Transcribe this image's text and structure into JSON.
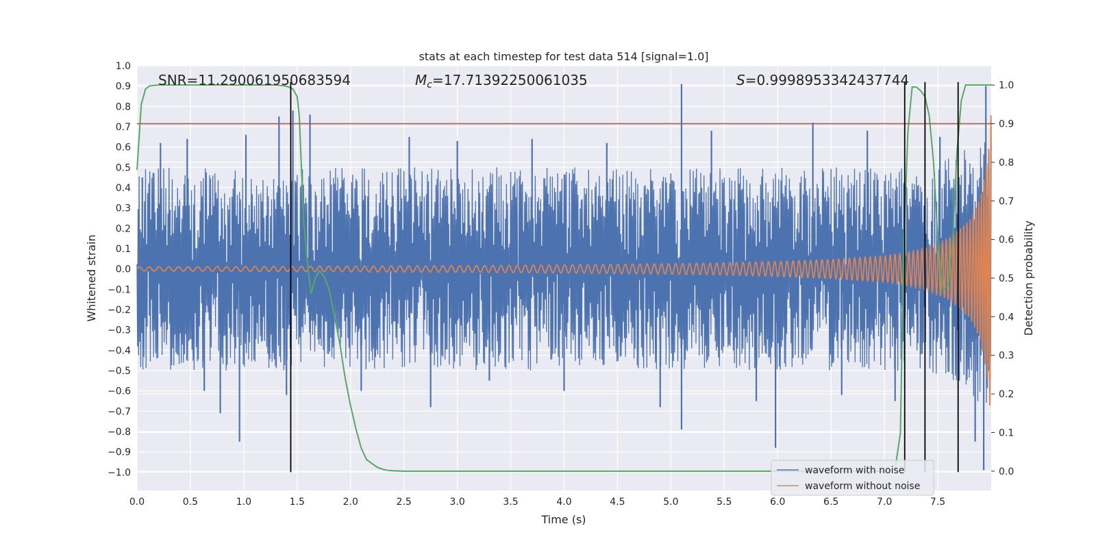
{
  "chart_data": {
    "type": "line",
    "title": "stats at each timestep for test data 514 [signal=1.0]",
    "xlabel": "Time (s)",
    "ylabel": "Whitened strain",
    "ylabel_right": "Detection probability",
    "xlim": [
      0.0,
      8.0
    ],
    "ylim": [
      -1.09,
      1.0
    ],
    "ylim_right": [
      -0.05,
      1.05
    ],
    "x_ticks": [
      "0.0",
      "0.5",
      "1.0",
      "1.5",
      "2.0",
      "2.5",
      "3.0",
      "3.5",
      "4.0",
      "4.5",
      "5.0",
      "5.5",
      "6.0",
      "6.5",
      "7.0",
      "7.5"
    ],
    "x_tick_values": [
      0.0,
      0.5,
      1.0,
      1.5,
      2.0,
      2.5,
      3.0,
      3.5,
      4.0,
      4.5,
      5.0,
      5.5,
      6.0,
      6.5,
      7.0,
      7.5
    ],
    "y_ticks": [
      "1.0",
      "0.9",
      "0.8",
      "0.7",
      "0.6",
      "0.5",
      "0.4",
      "0.3",
      "0.2",
      "0.1",
      "0.0",
      "−0.1",
      "−0.2",
      "−0.3",
      "−0.4",
      "−0.5",
      "−0.6",
      "−0.7",
      "−0.8",
      "−0.9",
      "−1.0"
    ],
    "y_tick_values": [
      1.0,
      0.9,
      0.8,
      0.7,
      0.6,
      0.5,
      0.4,
      0.3,
      0.2,
      0.1,
      0.0,
      -0.1,
      -0.2,
      -0.3,
      -0.4,
      -0.5,
      -0.6,
      -0.7,
      -0.8,
      -0.9,
      -1.0
    ],
    "y_right_ticks": [
      "1.0",
      "0.9",
      "0.8",
      "0.7",
      "0.6",
      "0.5",
      "0.4",
      "0.3",
      "0.2",
      "0.1",
      "0.0"
    ],
    "y_right_tick_values": [
      1.0,
      0.9,
      0.8,
      0.7,
      0.6,
      0.5,
      0.4,
      0.3,
      0.2,
      0.1,
      0.0
    ],
    "grid": true,
    "annotations": {
      "snr": "SNR=11.290061950683594",
      "mc_symbol": "M",
      "mc_sub": "c",
      "mc_value": "=17.71392250061035",
      "s_symbol": "S",
      "s_value": "=0.9998953342437744"
    },
    "threshold_right": 0.9,
    "vlines_x": [
      1.44,
      7.19,
      7.38,
      7.69
    ],
    "vline_ylim": [
      -1.0,
      0.92
    ],
    "series": [
      {
        "name": "waveform with noise",
        "color": "#4c72b0",
        "envelope_x": [
          0.0,
          0.5,
          1.0,
          1.5,
          2.0,
          2.5,
          3.0,
          3.5,
          4.0,
          4.5,
          5.0,
          5.5,
          6.0,
          6.5,
          7.0,
          7.5,
          7.8,
          7.95,
          8.0
        ],
        "envelope_upper": [
          0.5,
          0.5,
          0.5,
          0.5,
          0.5,
          0.5,
          0.5,
          0.5,
          0.5,
          0.5,
          0.5,
          0.5,
          0.5,
          0.5,
          0.5,
          0.52,
          0.62,
          0.7,
          0.75
        ],
        "envelope_lower": [
          -0.5,
          -0.5,
          -0.5,
          -0.5,
          -0.5,
          -0.5,
          -0.5,
          -0.5,
          -0.5,
          -0.5,
          -0.5,
          -0.5,
          -0.5,
          -0.5,
          -0.5,
          -0.52,
          -0.62,
          -0.7,
          -0.75
        ],
        "spikes": [
          [
            0.05,
            0.45
          ],
          [
            0.22,
            0.62
          ],
          [
            0.47,
            0.64
          ],
          [
            0.63,
            -0.6
          ],
          [
            0.78,
            -0.71
          ],
          [
            0.96,
            -0.85
          ],
          [
            1.02,
            0.66
          ],
          [
            1.33,
            0.75
          ],
          [
            1.4,
            -0.62
          ],
          [
            1.46,
            0.78
          ],
          [
            1.62,
            0.76
          ],
          [
            2.1,
            -0.6
          ],
          [
            2.55,
            0.65
          ],
          [
            2.75,
            -0.68
          ],
          [
            3.0,
            0.63
          ],
          [
            3.3,
            -0.55
          ],
          [
            3.7,
            0.64
          ],
          [
            4.0,
            -0.6
          ],
          [
            4.4,
            0.62
          ],
          [
            4.9,
            -0.68
          ],
          [
            5.1,
            0.91
          ],
          [
            5.1,
            -0.79
          ],
          [
            5.38,
            0.68
          ],
          [
            5.8,
            -0.65
          ],
          [
            5.98,
            -0.88
          ],
          [
            6.33,
            0.72
          ],
          [
            6.6,
            -0.62
          ],
          [
            6.84,
            0.68
          ],
          [
            7.1,
            -0.65
          ],
          [
            7.52,
            0.65
          ],
          [
            7.7,
            -0.55
          ],
          [
            7.85,
            -0.85
          ],
          [
            7.95,
            0.9
          ],
          [
            7.93,
            -0.99
          ]
        ]
      },
      {
        "name": "waveform without noise",
        "color": "#dd8452",
        "amplitude_x": [
          0.0,
          1.0,
          2.0,
          3.0,
          4.0,
          5.0,
          5.5,
          6.0,
          6.5,
          7.0,
          7.2,
          7.4,
          7.6,
          7.8,
          7.9,
          7.97,
          8.0
        ],
        "amplitude_y": [
          0.01,
          0.012,
          0.014,
          0.016,
          0.02,
          0.026,
          0.03,
          0.037,
          0.047,
          0.065,
          0.08,
          0.105,
          0.15,
          0.24,
          0.35,
          0.55,
          0.78
        ],
        "freq_hz_x": [
          0.0,
          1.0,
          2.0,
          3.0,
          4.0,
          5.0,
          6.0,
          7.0,
          7.5,
          7.8,
          8.0
        ],
        "freq_hz_y": [
          10.8,
          11.3,
          11.9,
          12.7,
          13.7,
          15.1,
          17.2,
          21.5,
          26.5,
          34.0,
          48.0
        ]
      },
      {
        "name": "",
        "axis": "right",
        "color": "#55a868",
        "x": [
          0.0,
          0.04,
          0.08,
          0.12,
          0.2,
          0.3,
          0.5,
          0.8,
          1.0,
          1.2,
          1.3,
          1.38,
          1.42,
          1.46,
          1.5,
          1.52,
          1.56,
          1.6,
          1.63,
          1.67,
          1.71,
          1.76,
          1.8,
          1.85,
          1.9,
          1.95,
          2.0,
          2.05,
          2.1,
          2.15,
          2.2,
          2.25,
          2.3,
          2.35,
          2.4,
          2.5,
          3.0,
          4.0,
          5.0,
          5.5,
          6.0,
          6.5,
          7.0,
          7.1,
          7.15,
          7.18,
          7.22,
          7.26,
          7.3,
          7.34,
          7.38,
          7.42,
          7.46,
          7.5,
          7.55,
          7.6,
          7.64,
          7.68,
          7.72,
          7.76,
          7.8,
          7.9,
          8.0
        ],
        "y": [
          0.78,
          0.95,
          0.99,
          0.998,
          1.0,
          1.0,
          1.0,
          1.0,
          1.0,
          1.0,
          1.0,
          0.998,
          0.995,
          0.99,
          0.97,
          0.92,
          0.65,
          0.53,
          0.46,
          0.5,
          0.52,
          0.5,
          0.47,
          0.4,
          0.33,
          0.24,
          0.17,
          0.11,
          0.06,
          0.03,
          0.02,
          0.01,
          0.005,
          0.002,
          0.001,
          0.0,
          0.0,
          0.0,
          0.0,
          0.0,
          0.0,
          0.0,
          0.0,
          0.005,
          0.1,
          0.58,
          0.88,
          0.995,
          0.995,
          0.985,
          0.97,
          0.92,
          0.8,
          0.6,
          0.47,
          0.48,
          0.6,
          0.83,
          0.96,
          1.0,
          1.0,
          1.0,
          1.0
        ]
      }
    ],
    "legend": {
      "placement": "lower-right",
      "entries": [
        "waveform with noise",
        "waveform without noise"
      ]
    }
  }
}
